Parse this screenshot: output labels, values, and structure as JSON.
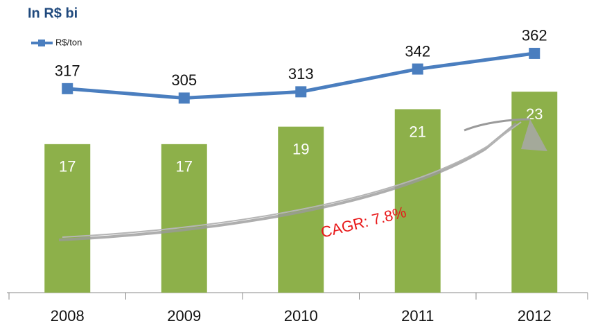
{
  "chart_data": {
    "type": "combo",
    "title": "In R$ bi",
    "categories": [
      "2008",
      "2009",
      "2010",
      "2011",
      "2012"
    ],
    "values": [
      17,
      17,
      19,
      21,
      23
    ],
    "color": "#8db04a",
    "ylim": [
      0,
      33.5
    ],
    "series": [
      {
        "name": "R$/ton",
        "color": "#4a7ebf",
        "values": [
          317,
          305,
          313,
          342,
          362
        ],
        "axis": "y2"
      }
    ],
    "y2lim": [
      57,
      430
    ],
    "annotation": "CAGR: 7.8%",
    "annotation_color": "#e8191a"
  }
}
